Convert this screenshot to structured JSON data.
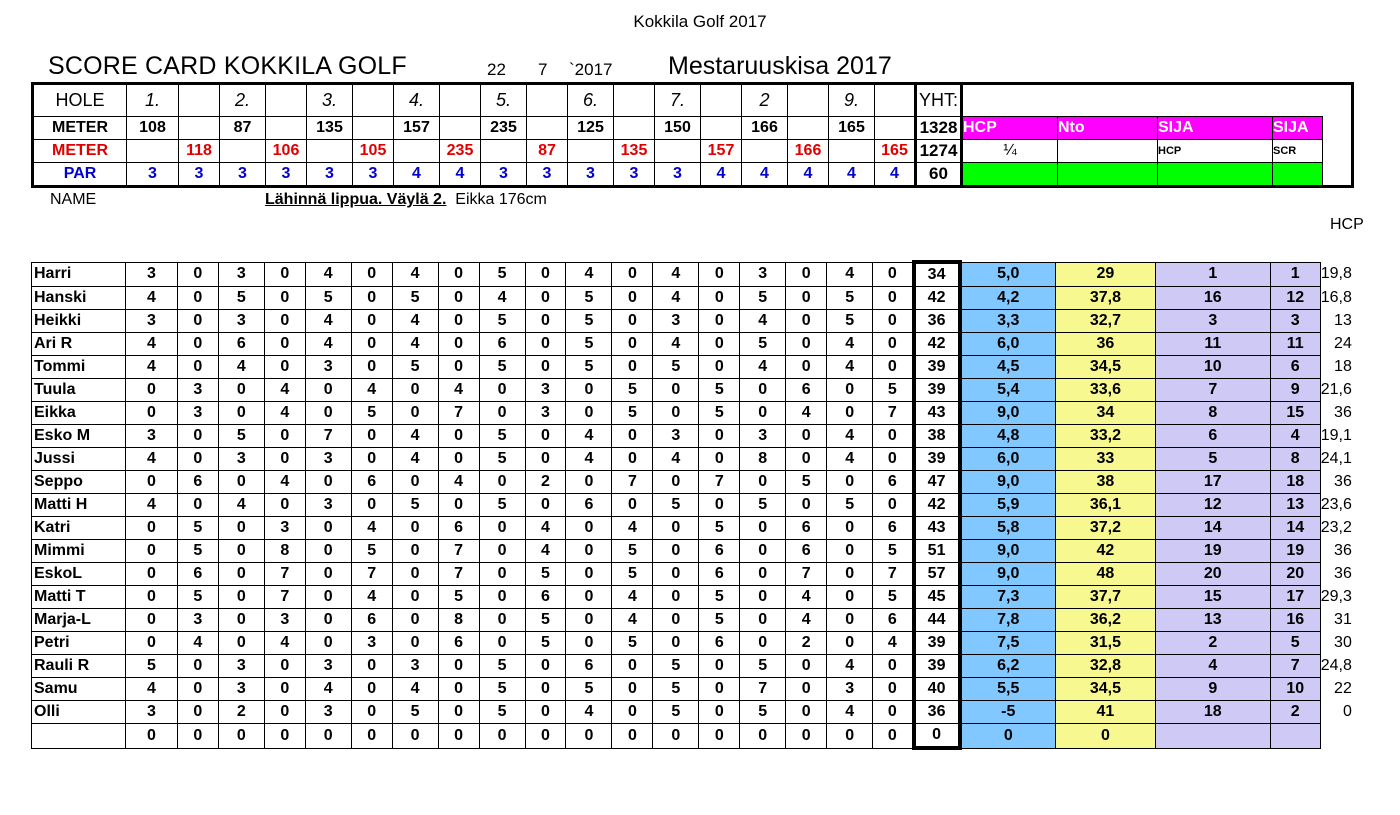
{
  "page": {
    "title": "Kokkila Golf 2017",
    "scorecard_title": "SCORE  CARD KOKKILA GOLF",
    "date": {
      "day": "22",
      "month": "7",
      "year": "`2017"
    },
    "event": "Mestaruuskisa 2017",
    "name_label": "NAME",
    "closest_label": "Lähinnä lippua. Väylä 2.",
    "closest_winner": "Eikka 176cm",
    "hcp_label": "HCP"
  },
  "header": {
    "hole_label": "HOLE",
    "holes": [
      "1.",
      "",
      "2.",
      "",
      "3.",
      "",
      "4.",
      "",
      "5.",
      "",
      "6.",
      "",
      "7.",
      "",
      "2",
      "",
      "9.",
      ""
    ],
    "total_label": "YHT:",
    "meter_label": "METER",
    "meters_white": [
      "108",
      "",
      "87",
      "",
      "135",
      "",
      "157",
      "",
      "235",
      "",
      "125",
      "",
      "150",
      "",
      "166",
      "",
      "165",
      ""
    ],
    "meters_white_total": "1328",
    "meters_red": [
      "",
      "118",
      "",
      "106",
      "",
      "105",
      "",
      "235",
      "",
      "87",
      "",
      "135",
      "",
      "157",
      "",
      "166",
      "",
      "165"
    ],
    "meters_red_total": "1274",
    "par_label": "PAR",
    "par": [
      "3",
      "3",
      "3",
      "3",
      "3",
      "3",
      "4",
      "4",
      "3",
      "3",
      "3",
      "3",
      "3",
      "4",
      "4",
      "4",
      "4",
      "4"
    ],
    "par_total": "60",
    "col_hcp": "HCP",
    "col_nto": "Nto",
    "col_sija1": "SIJA",
    "col_sija2": "SIJA",
    "hcp_fraction": "¼",
    "sija_hcp": "HCP",
    "sija_scr": "SCR"
  },
  "players": [
    {
      "name": "Harri",
      "scores": [
        "3",
        "0",
        "3",
        "0",
        "4",
        "0",
        "4",
        "0",
        "5",
        "0",
        "4",
        "0",
        "4",
        "0",
        "3",
        "0",
        "4",
        "0"
      ],
      "total": "34",
      "hcp": "5,0",
      "nto": "29",
      "rank_hcp": "1",
      "rank_scr": "1",
      "hcp_index": "19,8"
    },
    {
      "name": "Hanski",
      "scores": [
        "4",
        "0",
        "5",
        "0",
        "5",
        "0",
        "5",
        "0",
        "4",
        "0",
        "5",
        "0",
        "4",
        "0",
        "5",
        "0",
        "5",
        "0"
      ],
      "total": "42",
      "hcp": "4,2",
      "nto": "37,8",
      "rank_hcp": "16",
      "rank_scr": "12",
      "hcp_index": "16,8"
    },
    {
      "name": "Heikki",
      "scores": [
        "3",
        "0",
        "3",
        "0",
        "4",
        "0",
        "4",
        "0",
        "5",
        "0",
        "5",
        "0",
        "3",
        "0",
        "4",
        "0",
        "5",
        "0"
      ],
      "total": "36",
      "hcp": "3,3",
      "nto": "32,7",
      "rank_hcp": "3",
      "rank_scr": "3",
      "hcp_index": "13"
    },
    {
      "name": "Ari R",
      "scores": [
        "4",
        "0",
        "6",
        "0",
        "4",
        "0",
        "4",
        "0",
        "6",
        "0",
        "5",
        "0",
        "4",
        "0",
        "5",
        "0",
        "4",
        "0"
      ],
      "total": "42",
      "hcp": "6,0",
      "nto": "36",
      "rank_hcp": "11",
      "rank_scr": "11",
      "hcp_index": "24"
    },
    {
      "name": "Tommi",
      "scores": [
        "4",
        "0",
        "4",
        "0",
        "3",
        "0",
        "5",
        "0",
        "5",
        "0",
        "5",
        "0",
        "5",
        "0",
        "4",
        "0",
        "4",
        "0"
      ],
      "total": "39",
      "hcp": "4,5",
      "nto": "34,5",
      "rank_hcp": "10",
      "rank_scr": "6",
      "hcp_index": "18"
    },
    {
      "name": "Tuula",
      "scores": [
        "0",
        "3",
        "0",
        "4",
        "0",
        "4",
        "0",
        "4",
        "0",
        "3",
        "0",
        "5",
        "0",
        "5",
        "0",
        "6",
        "0",
        "5"
      ],
      "total": "39",
      "hcp": "5,4",
      "nto": "33,6",
      "rank_hcp": "7",
      "rank_scr": "9",
      "hcp_index": "21,6"
    },
    {
      "name": "Eikka",
      "scores": [
        "0",
        "3",
        "0",
        "4",
        "0",
        "5",
        "0",
        "7",
        "0",
        "3",
        "0",
        "5",
        "0",
        "5",
        "0",
        "4",
        "0",
        "7"
      ],
      "total": "43",
      "hcp": "9,0",
      "nto": "34",
      "rank_hcp": "8",
      "rank_scr": "15",
      "hcp_index": "36"
    },
    {
      "name": "Esko M",
      "scores": [
        "3",
        "0",
        "5",
        "0",
        "7",
        "0",
        "4",
        "0",
        "5",
        "0",
        "4",
        "0",
        "3",
        "0",
        "3",
        "0",
        "4",
        "0"
      ],
      "total": "38",
      "hcp": "4,8",
      "nto": "33,2",
      "rank_hcp": "6",
      "rank_scr": "4",
      "hcp_index": "19,1"
    },
    {
      "name": "Jussi",
      "scores": [
        "4",
        "0",
        "3",
        "0",
        "3",
        "0",
        "4",
        "0",
        "5",
        "0",
        "4",
        "0",
        "4",
        "0",
        "8",
        "0",
        "4",
        "0"
      ],
      "total": "39",
      "hcp": "6,0",
      "nto": "33",
      "rank_hcp": "5",
      "rank_scr": "8",
      "hcp_index": "24,1"
    },
    {
      "name": "Seppo",
      "scores": [
        "0",
        "6",
        "0",
        "4",
        "0",
        "6",
        "0",
        "4",
        "0",
        "2",
        "0",
        "7",
        "0",
        "7",
        "0",
        "5",
        "0",
        "6"
      ],
      "total": "47",
      "hcp": "9,0",
      "nto": "38",
      "rank_hcp": "17",
      "rank_scr": "18",
      "hcp_index": "36"
    },
    {
      "name": "Matti H",
      "scores": [
        "4",
        "0",
        "4",
        "0",
        "3",
        "0",
        "5",
        "0",
        "5",
        "0",
        "6",
        "0",
        "5",
        "0",
        "5",
        "0",
        "5",
        "0"
      ],
      "total": "42",
      "hcp": "5,9",
      "nto": "36,1",
      "rank_hcp": "12",
      "rank_scr": "13",
      "hcp_index": "23,6"
    },
    {
      "name": "Katri",
      "scores": [
        "0",
        "5",
        "0",
        "3",
        "0",
        "4",
        "0",
        "6",
        "0",
        "4",
        "0",
        "4",
        "0",
        "5",
        "0",
        "6",
        "0",
        "6"
      ],
      "total": "43",
      "hcp": "5,8",
      "nto": "37,2",
      "rank_hcp": "14",
      "rank_scr": "14",
      "hcp_index": "23,2"
    },
    {
      "name": "Mimmi",
      "scores": [
        "0",
        "5",
        "0",
        "8",
        "0",
        "5",
        "0",
        "7",
        "0",
        "4",
        "0",
        "5",
        "0",
        "6",
        "0",
        "6",
        "0",
        "5"
      ],
      "total": "51",
      "hcp": "9,0",
      "nto": "42",
      "rank_hcp": "19",
      "rank_scr": "19",
      "hcp_index": "36"
    },
    {
      "name": "EskoL",
      "scores": [
        "0",
        "6",
        "0",
        "7",
        "0",
        "7",
        "0",
        "7",
        "0",
        "5",
        "0",
        "5",
        "0",
        "6",
        "0",
        "7",
        "0",
        "7"
      ],
      "total": "57",
      "hcp": "9,0",
      "nto": "48",
      "rank_hcp": "20",
      "rank_scr": "20",
      "hcp_index": "36"
    },
    {
      "name": "Matti T",
      "scores": [
        "0",
        "5",
        "0",
        "7",
        "0",
        "4",
        "0",
        "5",
        "0",
        "6",
        "0",
        "4",
        "0",
        "5",
        "0",
        "4",
        "0",
        "5"
      ],
      "total": "45",
      "hcp": "7,3",
      "nto": "37,7",
      "rank_hcp": "15",
      "rank_scr": "17",
      "hcp_index": "29,3"
    },
    {
      "name": "Marja-L",
      "scores": [
        "0",
        "3",
        "0",
        "3",
        "0",
        "6",
        "0",
        "8",
        "0",
        "5",
        "0",
        "4",
        "0",
        "5",
        "0",
        "4",
        "0",
        "6"
      ],
      "total": "44",
      "hcp": "7,8",
      "nto": "36,2",
      "rank_hcp": "13",
      "rank_scr": "16",
      "hcp_index": "31"
    },
    {
      "name": "Petri",
      "scores": [
        "0",
        "4",
        "0",
        "4",
        "0",
        "3",
        "0",
        "6",
        "0",
        "5",
        "0",
        "5",
        "0",
        "6",
        "0",
        "2",
        "0",
        "4"
      ],
      "total": "39",
      "hcp": "7,5",
      "nto": "31,5",
      "rank_hcp": "2",
      "rank_scr": "5",
      "hcp_index": "30"
    },
    {
      "name": "Rauli R",
      "scores": [
        "5",
        "0",
        "3",
        "0",
        "3",
        "0",
        "3",
        "0",
        "5",
        "0",
        "6",
        "0",
        "5",
        "0",
        "5",
        "0",
        "4",
        "0"
      ],
      "total": "39",
      "hcp": "6,2",
      "nto": "32,8",
      "rank_hcp": "4",
      "rank_scr": "7",
      "hcp_index": "24,8"
    },
    {
      "name": "Samu",
      "scores": [
        "4",
        "0",
        "3",
        "0",
        "4",
        "0",
        "4",
        "0",
        "5",
        "0",
        "5",
        "0",
        "5",
        "0",
        "7",
        "0",
        "3",
        "0"
      ],
      "total": "40",
      "hcp": "5,5",
      "nto": "34,5",
      "rank_hcp": "9",
      "rank_scr": "10",
      "hcp_index": "22"
    },
    {
      "name": "Olli",
      "scores": [
        "3",
        "0",
        "2",
        "0",
        "3",
        "0",
        "5",
        "0",
        "5",
        "0",
        "4",
        "0",
        "5",
        "0",
        "5",
        "0",
        "4",
        "0"
      ],
      "total": "36",
      "hcp": "-5",
      "nto": "41",
      "rank_hcp": "18",
      "rank_scr": "2",
      "hcp_index": "0"
    },
    {
      "name": "",
      "scores": [
        "0",
        "0",
        "0",
        "0",
        "0",
        "0",
        "0",
        "0",
        "0",
        "0",
        "0",
        "0",
        "0",
        "0",
        "0",
        "0",
        "0",
        "0"
      ],
      "total": "0",
      "hcp": "0",
      "nto": "0",
      "rank_hcp": "",
      "rank_scr": "",
      "hcp_index": ""
    }
  ]
}
